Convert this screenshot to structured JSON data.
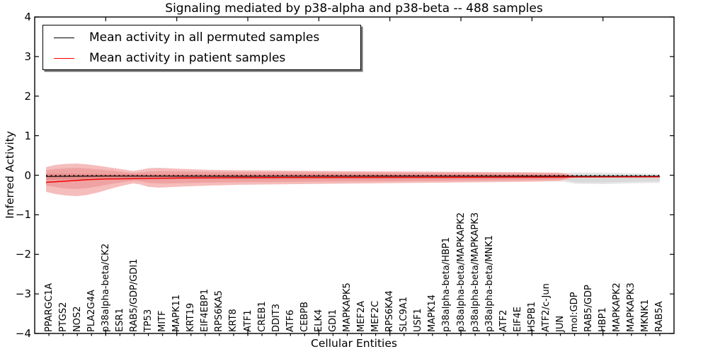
{
  "title": "Signaling mediated by p38-alpha and p38-beta -- 488 samples",
  "legend": {
    "entries": [
      {
        "label": "Mean activity in all permuted samples",
        "color": "#000000"
      },
      {
        "label": "Mean activity in patient samples",
        "color": "#ff0000"
      }
    ]
  },
  "chart_data": {
    "type": "line",
    "title": "Signaling mediated by p38-alpha and p38-beta -- 488 samples",
    "xlabel": "Cellular Entities",
    "ylabel": "Inferred Activity",
    "ylim": [
      -4,
      4
    ],
    "xlim": [
      0,
      45
    ],
    "yticks": [
      4,
      3,
      2,
      1,
      0,
      -1,
      -2,
      -3,
      -4
    ],
    "xticks_major_units": [
      5,
      10,
      15,
      20,
      25,
      30,
      35,
      40
    ],
    "grid": false,
    "legend_position": "upper left",
    "categories": [
      "PPARGC1A",
      "PTGS2",
      "NOS2",
      "PLA2G4A",
      "p38alpha-beta/CK2",
      "ESR1",
      "RAB5/GDP/GDI1",
      "TP53",
      "MITF",
      "MAPK11",
      "KRT19",
      "EIF4EBP1",
      "RPS6KA5",
      "KRT8",
      "ATF1",
      "CREB1",
      "DDIT3",
      "ATF6",
      "CEBPB",
      "ELK4",
      "GDI1",
      "MAPKAPK5",
      "MEF2A",
      "MEF2C",
      "RPS6KA4",
      "SLC9A1",
      "USF1",
      "MAPK14",
      "p38alpha-beta/HBP1",
      "p38alpha-beta/MAPKAPK2",
      "p38alpha-beta/MAPKAPK3",
      "p38alpha-beta/MNK1",
      "ATF2",
      "EIF4E",
      "HSPB1",
      "ATF2/c-Jun",
      "JUN",
      "mol:GDP",
      "RAB5/GDP",
      "HBP1",
      "MAPKAPK2",
      "MAPKAPK3",
      "MKNK1",
      "RAB5A"
    ],
    "series": [
      {
        "name": "Mean activity in all permuted samples",
        "color": "#000000",
        "values": [
          -0.02,
          -0.02,
          -0.02,
          -0.02,
          -0.02,
          -0.02,
          -0.02,
          -0.02,
          -0.02,
          -0.02,
          -0.02,
          -0.02,
          -0.02,
          -0.02,
          -0.02,
          -0.02,
          -0.02,
          -0.02,
          -0.02,
          -0.02,
          -0.02,
          -0.02,
          -0.02,
          -0.02,
          -0.02,
          -0.02,
          -0.02,
          -0.02,
          -0.02,
          -0.02,
          -0.02,
          -0.02,
          -0.02,
          -0.02,
          -0.02,
          -0.02,
          -0.02,
          -0.02,
          -0.02,
          -0.02,
          -0.02,
          -0.02,
          -0.02,
          -0.02
        ]
      },
      {
        "name": "Mean activity in patient samples",
        "color": "#ff0000",
        "values": [
          -0.17,
          -0.15,
          -0.125,
          -0.1,
          -0.095,
          -0.088,
          -0.084,
          -0.078,
          -0.073,
          -0.07,
          -0.066,
          -0.063,
          -0.061,
          -0.06,
          -0.059,
          -0.058,
          -0.057,
          -0.057,
          -0.056,
          -0.055,
          -0.054,
          -0.054,
          -0.053,
          -0.053,
          -0.052,
          -0.052,
          -0.051,
          -0.051,
          -0.05,
          -0.05,
          -0.049,
          -0.049,
          -0.048,
          -0.048,
          -0.047,
          -0.047,
          -0.046,
          -0.045,
          -0.044,
          -0.044,
          -0.043,
          -0.042,
          -0.042,
          -0.041
        ]
      }
    ],
    "bands": [
      {
        "name": "permuted-range-outer",
        "color": "#E7E7E7",
        "profile": [
          [
            0.8,
            0.054,
            -0.143
          ],
          [
            17.49,
            0.048,
            -0.138
          ],
          [
            37.17,
            0.063,
            -0.161
          ],
          [
            38.02,
            0.072,
            -0.215
          ],
          [
            39.91,
            0.066,
            -0.224
          ],
          [
            41.91,
            0.054,
            -0.206
          ],
          [
            44.0,
            0.036,
            -0.191
          ]
        ]
      },
      {
        "name": "permuted-range-inner",
        "color": "#D9D9D9",
        "profile": [
          [
            37.32,
            0.027,
            -0.116
          ],
          [
            38.02,
            0.036,
            -0.179
          ],
          [
            39.91,
            0.027,
            -0.184
          ],
          [
            41.91,
            0.018,
            -0.166
          ],
          [
            44.0,
            0.005,
            -0.152
          ]
        ]
      },
      {
        "name": "patient-range-outer",
        "color": "#F5BDBC",
        "profile": [
          [
            0.8,
            0.206,
            -0.421
          ],
          [
            1.44,
            0.26,
            -0.474
          ],
          [
            2.14,
            0.286,
            -0.51
          ],
          [
            2.94,
            0.295,
            -0.528
          ],
          [
            3.64,
            0.277,
            -0.501
          ],
          [
            4.43,
            0.242,
            -0.438
          ],
          [
            5.28,
            0.197,
            -0.349
          ],
          [
            6.13,
            0.152,
            -0.268
          ],
          [
            6.93,
            0.107,
            -0.206
          ],
          [
            7.42,
            0.134,
            -0.233
          ],
          [
            8.02,
            0.179,
            -0.295
          ],
          [
            8.77,
            0.188,
            -0.313
          ],
          [
            9.77,
            0.17,
            -0.295
          ],
          [
            11.01,
            0.152,
            -0.277
          ],
          [
            12.51,
            0.134,
            -0.26
          ],
          [
            14.5,
            0.125,
            -0.242
          ],
          [
            17.49,
            0.116,
            -0.229
          ],
          [
            20.48,
            0.107,
            -0.217
          ],
          [
            23.47,
            0.098,
            -0.206
          ],
          [
            26.46,
            0.093,
            -0.195
          ],
          [
            29.45,
            0.088,
            -0.184
          ],
          [
            32.44,
            0.081,
            -0.174
          ],
          [
            34.93,
            0.075,
            -0.163
          ],
          [
            36.92,
            0.066,
            -0.149
          ],
          [
            37.57,
            0.036,
            -0.098
          ],
          [
            38.02,
            -0.014,
            -0.05
          ]
        ]
      },
      {
        "name": "patient-range-inner",
        "color": "#EEA3A2",
        "profile": [
          [
            0.8,
            0.125,
            -0.26
          ],
          [
            1.54,
            0.161,
            -0.304
          ],
          [
            2.29,
            0.179,
            -0.34
          ],
          [
            3.04,
            0.188,
            -0.349
          ],
          [
            3.79,
            0.17,
            -0.322
          ],
          [
            4.53,
            0.143,
            -0.277
          ],
          [
            5.43,
            0.116,
            -0.215
          ],
          [
            6.28,
            0.081,
            -0.17
          ],
          [
            7.03,
            0.054,
            -0.138
          ],
          [
            7.52,
            0.072,
            -0.161
          ],
          [
            8.12,
            0.098,
            -0.197
          ],
          [
            8.92,
            0.107,
            -0.211
          ],
          [
            10.02,
            0.098,
            -0.202
          ],
          [
            12.01,
            0.089,
            -0.188
          ],
          [
            15.0,
            0.081,
            -0.175
          ],
          [
            19.98,
            0.073,
            -0.163
          ],
          [
            24.96,
            0.066,
            -0.152
          ],
          [
            29.95,
            0.059,
            -0.141
          ],
          [
            34.43,
            0.052,
            -0.131
          ],
          [
            36.68,
            0.047,
            -0.12
          ],
          [
            37.42,
            0.027,
            -0.091
          ],
          [
            37.72,
            -0.016,
            -0.048
          ]
        ]
      },
      {
        "name": "patient-range-core",
        "color": "#E78D8B",
        "profile": [
          [
            0.8,
            0.041,
            -0.113
          ],
          [
            7.03,
            0.03,
            -0.102
          ],
          [
            17.49,
            0.029,
            -0.1
          ],
          [
            32.44,
            0.023,
            -0.093
          ],
          [
            37.17,
            0.013,
            -0.084
          ],
          [
            37.57,
            -0.013,
            -0.055
          ]
        ]
      }
    ],
    "lines": [
      {
        "name": "permuted-mean-line",
        "color": "#000000",
        "width": 1.1,
        "dash": null,
        "points": [
          [
            0.8,
            -0.03
          ],
          [
            5,
            -0.022
          ],
          [
            15,
            -0.025
          ],
          [
            25,
            -0.022
          ],
          [
            35,
            -0.024
          ],
          [
            44,
            -0.025
          ]
        ]
      },
      {
        "name": "patient-mean-line",
        "color": "#f00000",
        "width": 1.4,
        "dash": null,
        "points": [
          [
            0.8,
            -0.179
          ],
          [
            2.04,
            -0.152
          ],
          [
            3.54,
            -0.116
          ],
          [
            5.03,
            -0.095
          ],
          [
            7.52,
            -0.084
          ],
          [
            10.02,
            -0.07
          ],
          [
            13.5,
            -0.061
          ],
          [
            17.49,
            -0.057
          ],
          [
            22.47,
            -0.054
          ],
          [
            27.46,
            -0.052
          ],
          [
            32.44,
            -0.05
          ],
          [
            37.42,
            -0.047
          ],
          [
            40.91,
            -0.043
          ],
          [
            44.0,
            -0.041
          ]
        ]
      },
      {
        "name": "zero-dotted-line",
        "color": "#000000",
        "width": 1.7,
        "dash": "1.8 4.6",
        "points": [
          [
            0.8,
            -0.011
          ],
          [
            44.0,
            -0.011
          ]
        ]
      }
    ]
  }
}
